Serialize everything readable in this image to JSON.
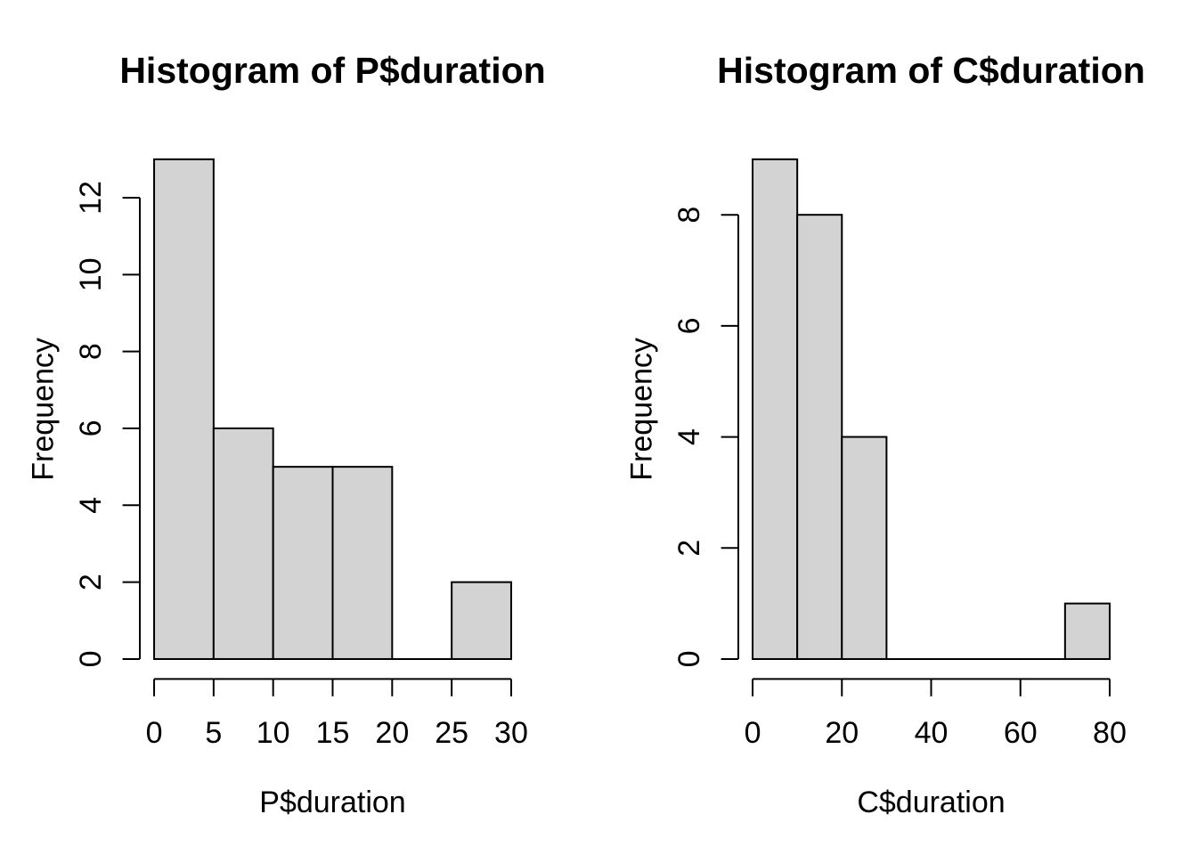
{
  "figure": {
    "background": "#ffffff",
    "text_color": "#000000"
  },
  "chart_data": [
    {
      "type": "bar",
      "subtype": "histogram",
      "title": "Histogram of P$duration",
      "xlabel": "P$duration",
      "ylabel": "Frequency",
      "breaks": [
        0,
        5,
        10,
        15,
        20,
        25,
        30
      ],
      "counts": [
        13,
        6,
        5,
        5,
        0,
        2
      ],
      "xlim": [
        0,
        30
      ],
      "ylim": [
        0,
        13
      ],
      "x_ticks": [
        0,
        5,
        10,
        15,
        20,
        25,
        30
      ],
      "y_ticks": [
        0,
        2,
        4,
        6,
        8,
        10,
        12
      ],
      "bar_fill": "#d3d3d3",
      "bar_stroke": "#000000",
      "axis_color": "#000000",
      "grid": false,
      "legend": null
    },
    {
      "type": "bar",
      "subtype": "histogram",
      "title": "Histogram of C$duration",
      "xlabel": "C$duration",
      "ylabel": "Frequency",
      "breaks": [
        0,
        10,
        20,
        30,
        40,
        50,
        60,
        70,
        80
      ],
      "counts": [
        9,
        8,
        4,
        0,
        0,
        0,
        0,
        1
      ],
      "xlim": [
        0,
        80
      ],
      "ylim": [
        0,
        9
      ],
      "x_ticks": [
        0,
        20,
        40,
        60,
        80
      ],
      "y_ticks": [
        0,
        2,
        4,
        6,
        8
      ],
      "bar_fill": "#d3d3d3",
      "bar_stroke": "#000000",
      "axis_color": "#000000",
      "grid": false,
      "legend": null
    }
  ]
}
